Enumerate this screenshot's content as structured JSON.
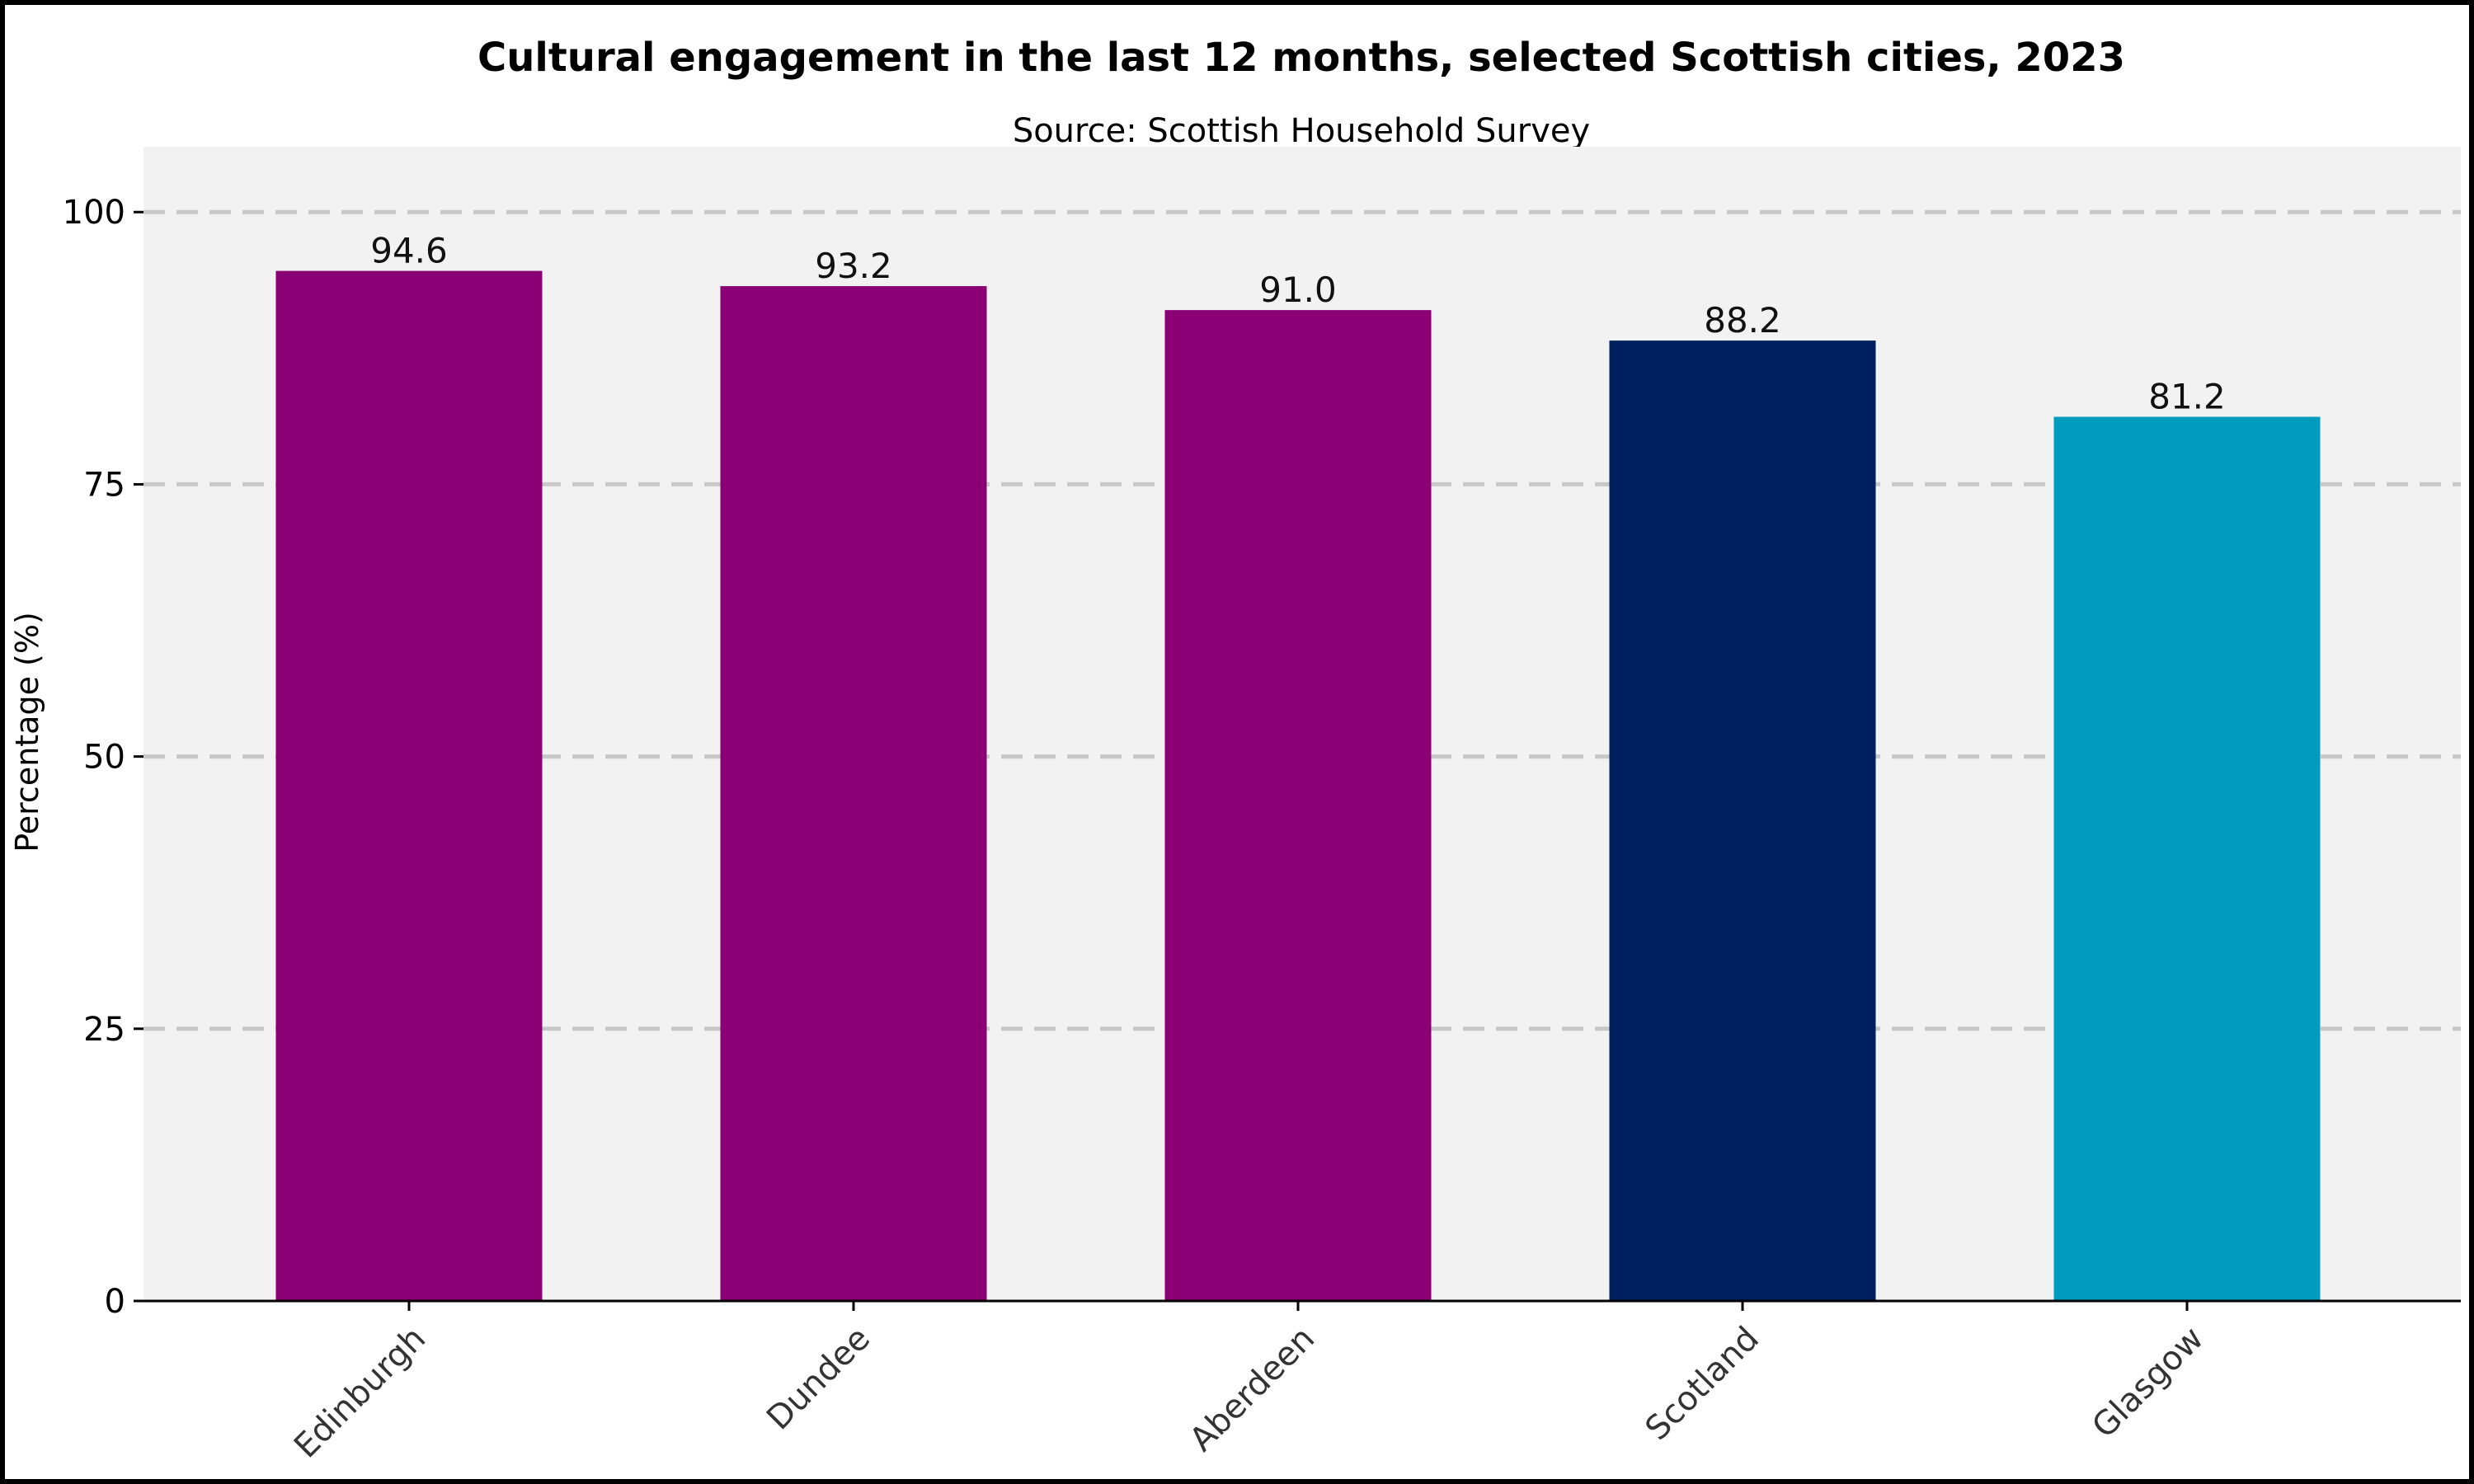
{
  "chart_data": {
    "type": "bar",
    "title": "Cultural engagement in the last 12 months, selected Scottish cities, 2023",
    "subtitle": "Source: Scottish Household Survey",
    "xlabel": "",
    "ylabel": "Percentage (%)",
    "categories": [
      "Edinburgh",
      "Dundee",
      "Aberdeen",
      "Scotland",
      "Glasgow"
    ],
    "values": [
      94.6,
      93.2,
      91.0,
      88.2,
      81.2
    ],
    "value_labels": [
      "94.6",
      "93.2",
      "91.0",
      "88.2",
      "81.2"
    ],
    "bar_colors": [
      "#8B0074",
      "#8B0074",
      "#8B0074",
      "#001F5F",
      "#009BBD"
    ],
    "ylim": [
      0,
      106
    ],
    "yticks": [
      0,
      25,
      50,
      75,
      100
    ],
    "ytick_labels": [
      "0",
      "25",
      "50",
      "75",
      "100"
    ],
    "grid": "horizontal dashed",
    "colors": {
      "plot_background": "#F2F2F2",
      "gridline": "#C8C8C8",
      "axis": "#000000"
    }
  }
}
